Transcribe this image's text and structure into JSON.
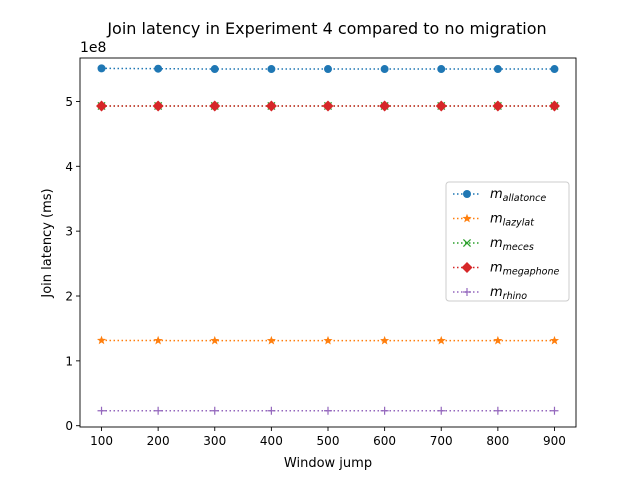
{
  "chart_data": {
    "type": "line",
    "title": "Join latency in Experiment 4 compared to no migration",
    "xlabel": "Window jump",
    "ylabel": "Join latency (ms)",
    "y_offset_label": "1e8",
    "y_scale_factor": 100000000,
    "x": [
      100,
      200,
      300,
      400,
      500,
      600,
      700,
      800,
      900
    ],
    "xlim": [
      62,
      938
    ],
    "ylim": [
      -2000000,
      567000000
    ],
    "x_ticks": [
      100,
      200,
      300,
      400,
      500,
      600,
      700,
      800,
      900
    ],
    "y_ticks": [
      0,
      100000000,
      200000000,
      300000000,
      400000000,
      500000000
    ],
    "y_tick_labels": [
      "0",
      "1",
      "2",
      "3",
      "4",
      "5"
    ],
    "grid": false,
    "legend_placement": "center-right",
    "series": [
      {
        "name": "m_allatonce",
        "label_main": "m",
        "label_sub": "allatonce",
        "color": "#1f77b4",
        "marker": "circle",
        "values": [
          551000000,
          550500000,
          550000000,
          550000000,
          550000000,
          550000000,
          550000000,
          550000000,
          550000000
        ]
      },
      {
        "name": "m_lazylat",
        "label_main": "m",
        "label_sub": "lazylat",
        "color": "#ff7f0e",
        "marker": "star",
        "values": [
          131500000,
          131300000,
          131200000,
          131200000,
          131200000,
          131200000,
          131200000,
          131200000,
          131200000
        ]
      },
      {
        "name": "m_meces",
        "label_main": "m",
        "label_sub": "meces",
        "color": "#2ca02c",
        "marker": "x",
        "values": [
          493000000,
          493000000,
          493000000,
          493000000,
          493000000,
          493000000,
          493000000,
          493000000,
          493000000
        ]
      },
      {
        "name": "m_megaphone",
        "label_main": "m",
        "label_sub": "megaphone",
        "color": "#d62728",
        "marker": "diamond",
        "values": [
          493000000,
          493000000,
          493000000,
          493000000,
          493000000,
          493000000,
          493000000,
          493000000,
          493000000
        ]
      },
      {
        "name": "m_rhino",
        "label_main": "m",
        "label_sub": "rhino",
        "color": "#9467bd",
        "marker": "plus",
        "values": [
          23000000,
          23000000,
          23000000,
          23000000,
          23000000,
          23000000,
          23000000,
          23000000,
          23000000
        ]
      }
    ]
  }
}
